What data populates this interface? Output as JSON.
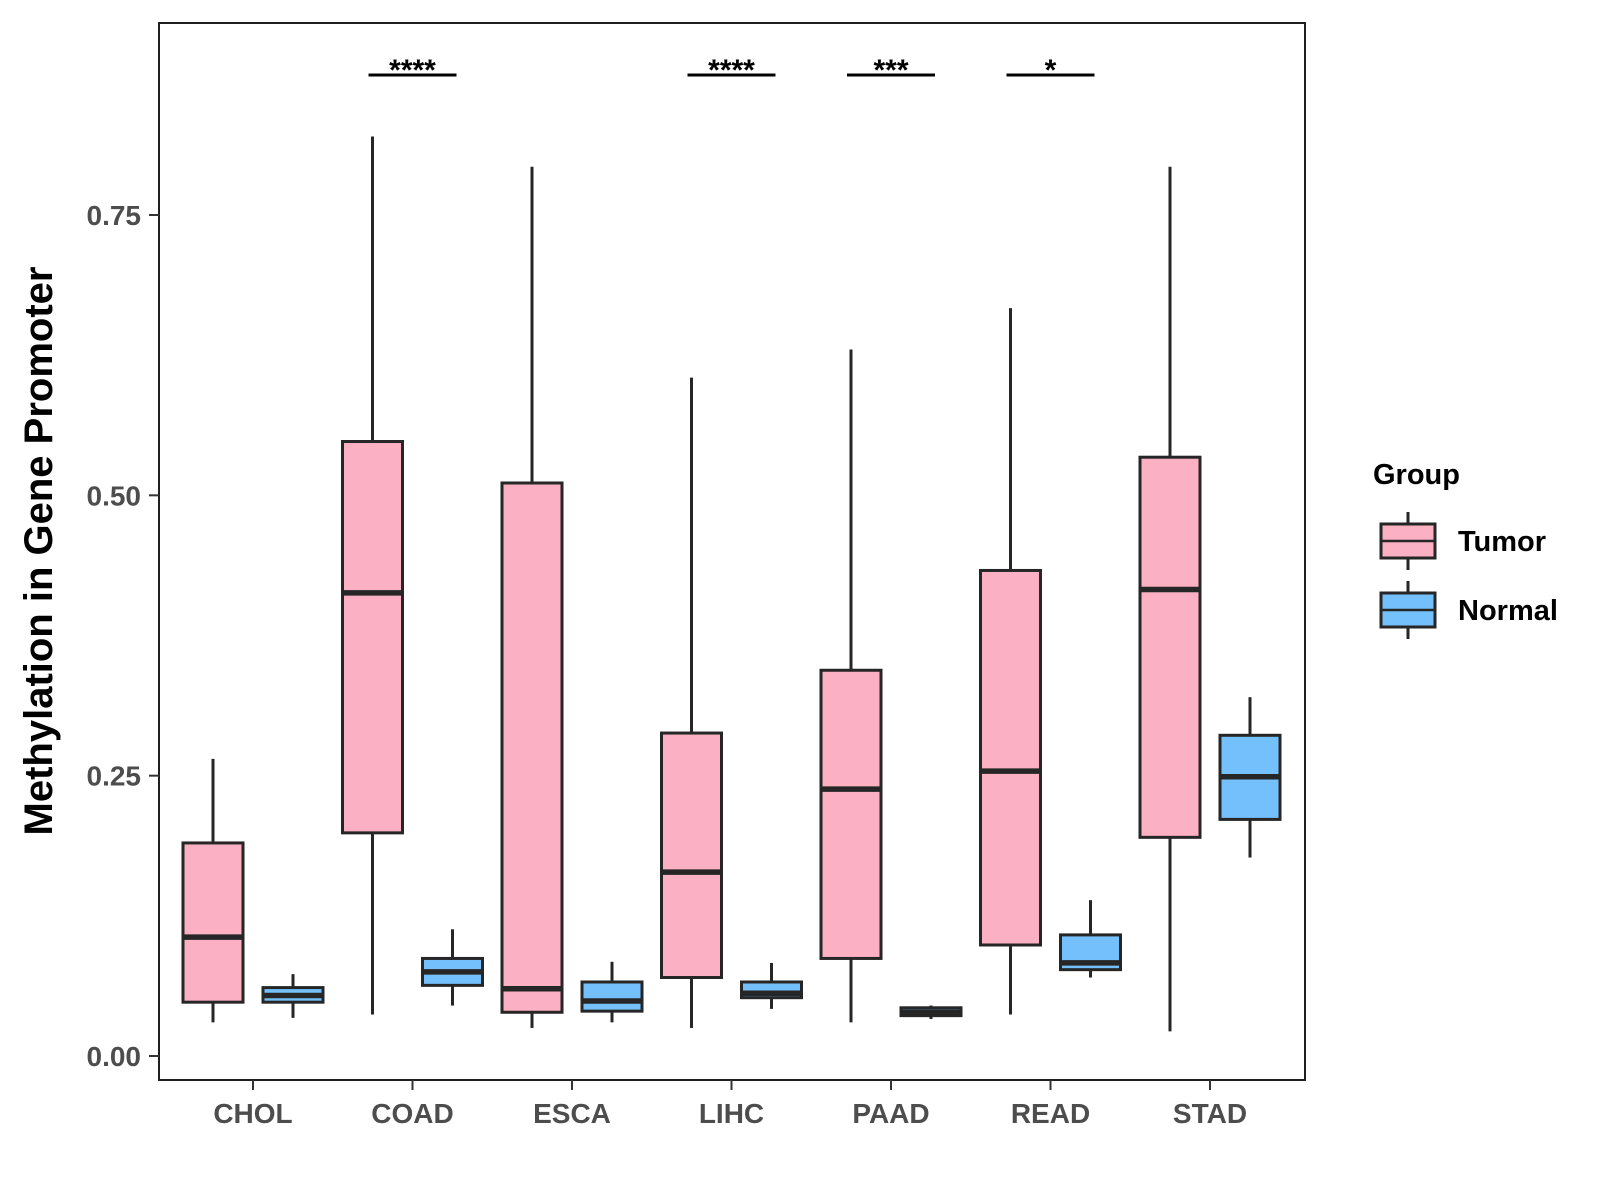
{
  "chart_data": {
    "type": "boxplot",
    "title": "",
    "xlabel": "",
    "ylabel": "Methylation in Gene Promoter",
    "ylim": [
      -0.02,
      0.925
    ],
    "y_ticks": [
      "0.00",
      "0.25",
      "0.50",
      "0.75"
    ],
    "y_tick_values": [
      0,
      0.25,
      0.5,
      0.75
    ],
    "grid": false,
    "legend_position": "right",
    "legend": {
      "title": "Group",
      "entries": [
        {
          "name": "Tumor",
          "color": "#fcb0c3"
        },
        {
          "name": "Normal",
          "color": "#74c0fc"
        }
      ]
    },
    "categories": [
      "CHOL",
      "COAD",
      "ESCA",
      "LIHC",
      "PAAD",
      "READ",
      "STAD"
    ],
    "series": [
      {
        "name": "Tumor",
        "color": "#fcb0c3",
        "boxes": [
          {
            "category": "CHOL",
            "min": 0.03,
            "q1": 0.048,
            "median": 0.106,
            "q3": 0.19,
            "max": 0.265
          },
          {
            "category": "COAD",
            "min": 0.037,
            "q1": 0.199,
            "median": 0.413,
            "q3": 0.548,
            "max": 0.82
          },
          {
            "category": "ESCA",
            "min": 0.025,
            "q1": 0.039,
            "median": 0.06,
            "q3": 0.511,
            "max": 0.793
          },
          {
            "category": "LIHC",
            "min": 0.025,
            "q1": 0.07,
            "median": 0.164,
            "q3": 0.288,
            "max": 0.605
          },
          {
            "category": "PAAD",
            "min": 0.03,
            "q1": 0.087,
            "median": 0.238,
            "q3": 0.344,
            "max": 0.63
          },
          {
            "category": "READ",
            "min": 0.037,
            "q1": 0.099,
            "median": 0.254,
            "q3": 0.433,
            "max": 0.667
          },
          {
            "category": "STAD",
            "min": 0.022,
            "q1": 0.195,
            "median": 0.416,
            "q3": 0.534,
            "max": 0.793
          }
        ]
      },
      {
        "name": "Normal",
        "color": "#74c0fc",
        "boxes": [
          {
            "category": "CHOL",
            "min": 0.034,
            "q1": 0.048,
            "median": 0.054,
            "q3": 0.061,
            "max": 0.073
          },
          {
            "category": "COAD",
            "min": 0.045,
            "q1": 0.063,
            "median": 0.075,
            "q3": 0.087,
            "max": 0.113
          },
          {
            "category": "ESCA",
            "min": 0.03,
            "q1": 0.04,
            "median": 0.049,
            "q3": 0.066,
            "max": 0.084
          },
          {
            "category": "LIHC",
            "min": 0.042,
            "q1": 0.052,
            "median": 0.056,
            "q3": 0.066,
            "max": 0.083
          },
          {
            "category": "PAAD",
            "min": 0.033,
            "q1": 0.036,
            "median": 0.039,
            "q3": 0.043,
            "max": 0.045
          },
          {
            "category": "READ",
            "min": 0.07,
            "q1": 0.077,
            "median": 0.083,
            "q3": 0.108,
            "max": 0.139
          },
          {
            "category": "STAD",
            "min": 0.177,
            "q1": 0.211,
            "median": 0.249,
            "q3": 0.286,
            "max": 0.32
          }
        ]
      }
    ],
    "annotations": [
      {
        "category": "COAD",
        "label": "****"
      },
      {
        "category": "LIHC",
        "label": "****"
      },
      {
        "category": "PAAD",
        "label": "***"
      },
      {
        "category": "READ",
        "label": "*"
      }
    ]
  }
}
